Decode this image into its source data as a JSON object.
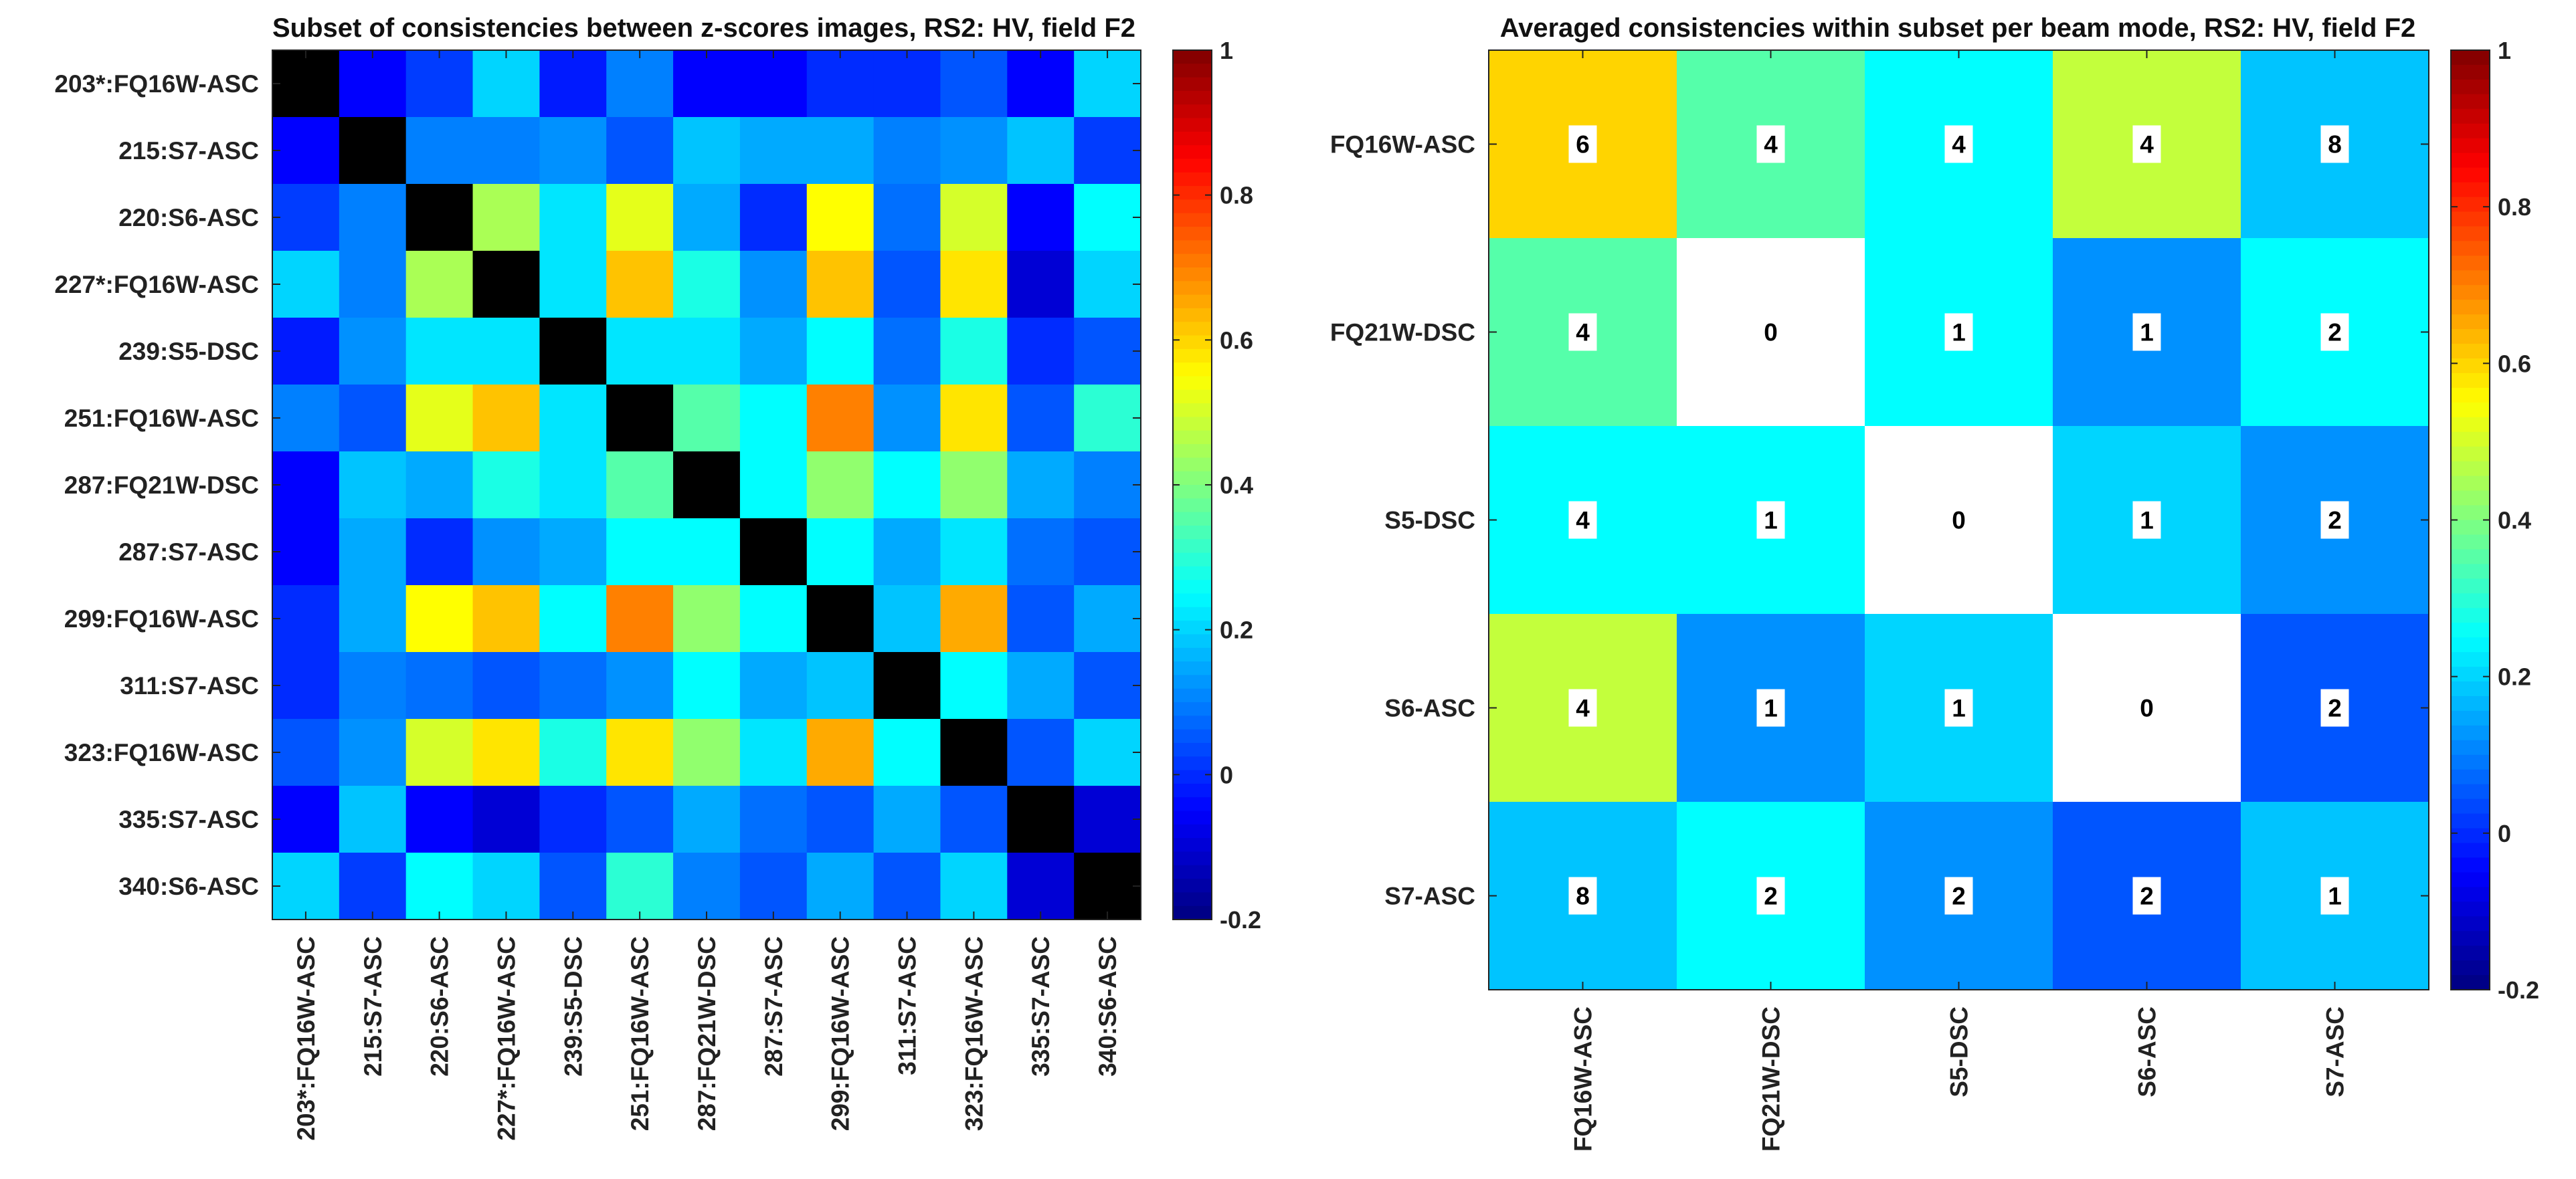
{
  "chart_data": [
    {
      "type": "heatmap",
      "title": "Subset of consistencies between z-scores images, RS2: HV, field F2",
      "row_labels": [
        "203*:FQ16W-ASC",
        "215:S7-ASC",
        "220:S6-ASC",
        "227*:FQ16W-ASC",
        "239:S5-DSC",
        "251:FQ16W-ASC",
        "287:FQ21W-DSC",
        "287:S7-ASC",
        "299:FQ16W-ASC",
        "311:S7-ASC",
        "323:FQ16W-ASC",
        "335:S7-ASC",
        "340:S6-ASC"
      ],
      "col_labels": [
        "203*:FQ16W-ASC",
        "215:S7-ASC",
        "220:S6-ASC",
        "227*:FQ16W-ASC",
        "239:S5-DSC",
        "251:FQ16W-ASC",
        "287:FQ21W-DSC",
        "287:S7-ASC",
        "299:FQ16W-ASC",
        "311:S7-ASC",
        "323:FQ16W-ASC",
        "335:S7-ASC",
        "340:S6-ASC"
      ],
      "values": [
        [
          null,
          -0.05,
          0.02,
          0.2,
          -0.02,
          0.1,
          -0.05,
          -0.05,
          0.0,
          0.0,
          0.05,
          -0.05,
          0.2
        ],
        [
          -0.05,
          null,
          0.1,
          0.1,
          0.12,
          0.05,
          0.18,
          0.15,
          0.15,
          0.1,
          0.12,
          0.18,
          0.02
        ],
        [
          0.02,
          0.1,
          null,
          0.45,
          0.22,
          0.52,
          0.15,
          0.0,
          0.55,
          0.08,
          0.5,
          -0.05,
          0.25
        ],
        [
          0.2,
          0.1,
          0.45,
          null,
          0.22,
          0.62,
          0.28,
          0.12,
          0.62,
          0.05,
          0.58,
          -0.1,
          0.2
        ],
        [
          -0.02,
          0.12,
          0.22,
          0.22,
          null,
          0.22,
          0.22,
          0.15,
          0.25,
          0.08,
          0.28,
          0.0,
          0.05
        ],
        [
          0.1,
          0.05,
          0.52,
          0.62,
          0.22,
          null,
          0.35,
          0.25,
          0.7,
          0.12,
          0.58,
          0.05,
          0.3
        ],
        [
          -0.05,
          0.18,
          0.15,
          0.28,
          0.22,
          0.35,
          null,
          0.25,
          0.42,
          0.25,
          0.42,
          0.15,
          0.1
        ],
        [
          -0.05,
          0.15,
          0.0,
          0.12,
          0.15,
          0.25,
          0.25,
          null,
          0.25,
          0.15,
          0.22,
          0.08,
          0.05
        ],
        [
          0.0,
          0.15,
          0.55,
          0.62,
          0.25,
          0.7,
          0.42,
          0.25,
          null,
          0.18,
          0.65,
          0.05,
          0.15
        ],
        [
          0.0,
          0.1,
          0.08,
          0.05,
          0.08,
          0.12,
          0.25,
          0.15,
          0.18,
          null,
          0.25,
          0.15,
          0.05
        ],
        [
          0.05,
          0.12,
          0.5,
          0.58,
          0.28,
          0.58,
          0.42,
          0.22,
          0.65,
          0.25,
          null,
          0.05,
          0.2
        ],
        [
          -0.05,
          0.18,
          -0.05,
          -0.1,
          0.0,
          0.05,
          0.15,
          0.08,
          0.05,
          0.15,
          0.05,
          null,
          -0.1
        ],
        [
          0.2,
          0.02,
          0.25,
          0.2,
          0.05,
          0.3,
          0.1,
          0.05,
          0.15,
          0.05,
          0.2,
          -0.1,
          null
        ]
      ],
      "diagonal": "black",
      "colormap": "jet",
      "clim": [
        -0.2,
        1
      ],
      "colorbar_ticks": [
        "1",
        "0.8",
        "0.6",
        "0.4",
        "0.2",
        "0",
        "-0.2"
      ],
      "colorbar_values": [
        1,
        0.8,
        0.6,
        0.4,
        0.2,
        0,
        -0.2
      ]
    },
    {
      "type": "heatmap",
      "title": "Averaged consistencies within subset per beam mode, RS2: HV, field F2",
      "row_labels": [
        "FQ16W-ASC",
        "FQ21W-DSC",
        "S5-DSC",
        "S6-ASC",
        "S7-ASC"
      ],
      "col_labels": [
        "FQ16W-ASC",
        "FQ21W-DSC",
        "S5-DSC",
        "S6-ASC",
        "S7-ASC"
      ],
      "values": [
        [
          0.6,
          0.35,
          0.25,
          0.48,
          0.18
        ],
        [
          0.35,
          null,
          0.25,
          0.12,
          0.25
        ],
        [
          0.25,
          0.25,
          null,
          0.2,
          0.12
        ],
        [
          0.48,
          0.12,
          0.2,
          null,
          0.05
        ],
        [
          0.18,
          0.25,
          0.12,
          0.05,
          0.18
        ]
      ],
      "cell_labels": [
        [
          "6",
          "4",
          "4",
          "4",
          "8"
        ],
        [
          "4",
          "0",
          "1",
          "1",
          "2"
        ],
        [
          "4",
          "1",
          "0",
          "1",
          "2"
        ],
        [
          "4",
          "1",
          "1",
          "0",
          "2"
        ],
        [
          "8",
          "2",
          "2",
          "2",
          "1"
        ]
      ],
      "empty_cell": "white",
      "colormap": "jet",
      "clim": [
        -0.2,
        1
      ],
      "colorbar_ticks": [
        "1",
        "0.8",
        "0.6",
        "0.4",
        "0.2",
        "0",
        "-0.2"
      ],
      "colorbar_values": [
        1,
        0.8,
        0.6,
        0.4,
        0.2,
        0,
        -0.2
      ]
    }
  ]
}
